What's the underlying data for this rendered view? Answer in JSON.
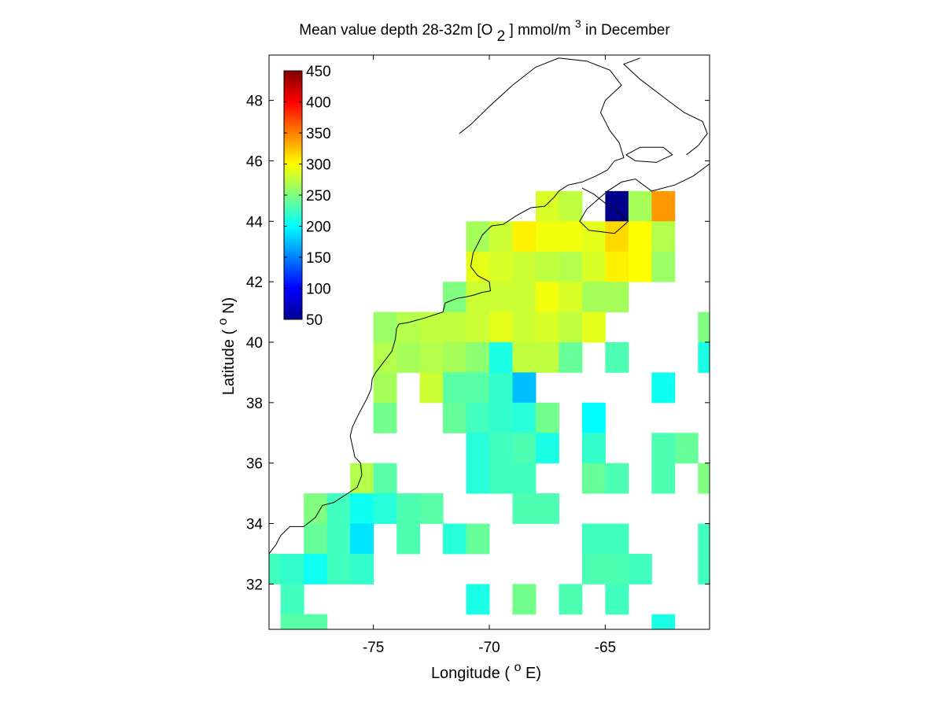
{
  "chart_data": {
    "type": "heatmap",
    "title": "Mean value depth 28-32m [O 2] mmol/m3 in December",
    "title_parts": {
      "prefix": "Mean value depth 28-32m [O",
      "sub": "2",
      "middle": "] mmol/m",
      "sup": "3",
      "suffix": " in December"
    },
    "xlabel": "Longitude ( oE)",
    "xlabel_parts": {
      "prefix": "Longitude ( ",
      "sup": "o",
      "suffix": "E)"
    },
    "ylabel": "Latitude ( oN)",
    "ylabel_parts": {
      "prefix": "Latitude ( ",
      "sup": "o",
      "suffix": "N)"
    },
    "xlim": [
      -79.5,
      -60.5
    ],
    "ylim": [
      30.5,
      49.5
    ],
    "xticks": [
      -75,
      -70,
      -65
    ],
    "xtick_labels": [
      "-75",
      "-70",
      "-65"
    ],
    "yticks": [
      32,
      34,
      36,
      38,
      40,
      42,
      44,
      46,
      48
    ],
    "ytick_labels": [
      "32",
      "34",
      "36",
      "38",
      "40",
      "42",
      "44",
      "46",
      "48"
    ],
    "cell_size_deg": 1,
    "colormap": "jet",
    "clim": [
      50,
      450
    ],
    "colorbar_ticks": [
      50,
      100,
      150,
      200,
      250,
      300,
      350,
      400,
      450
    ],
    "colorbar_tick_labels": [
      "50",
      "100",
      "150",
      "200",
      "250",
      "300",
      "350",
      "400",
      "450"
    ],
    "colorbar_location": "top-left",
    "grid": false,
    "cells": [
      [
        -67.5,
        44.5,
        285
      ],
      [
        -66.5,
        44.5,
        275
      ],
      [
        -64.5,
        44.5,
        55
      ],
      [
        -63.5,
        44.5,
        265
      ],
      [
        -62.5,
        44.5,
        340
      ],
      [
        -70.5,
        43.5,
        265
      ],
      [
        -69.5,
        43.5,
        280
      ],
      [
        -68.5,
        43.5,
        305
      ],
      [
        -67.5,
        43.5,
        295
      ],
      [
        -66.5,
        43.5,
        295
      ],
      [
        -65.5,
        43.5,
        290
      ],
      [
        -64.5,
        43.5,
        315
      ],
      [
        -63.5,
        43.5,
        300
      ],
      [
        -62.5,
        43.5,
        270
      ],
      [
        -70.5,
        42.5,
        290
      ],
      [
        -69.5,
        42.5,
        285
      ],
      [
        -68.5,
        42.5,
        280
      ],
      [
        -67.5,
        42.5,
        275
      ],
      [
        -66.5,
        42.5,
        270
      ],
      [
        -65.5,
        42.5,
        285
      ],
      [
        -64.5,
        42.5,
        305
      ],
      [
        -63.5,
        42.5,
        300
      ],
      [
        -62.5,
        42.5,
        260
      ],
      [
        -71.5,
        41.5,
        250
      ],
      [
        -70.5,
        41.5,
        280
      ],
      [
        -69.5,
        41.5,
        280
      ],
      [
        -68.5,
        41.5,
        280
      ],
      [
        -67.5,
        41.5,
        295
      ],
      [
        -66.5,
        41.5,
        285
      ],
      [
        -65.5,
        41.5,
        265
      ],
      [
        -64.5,
        41.5,
        265
      ],
      [
        -74.5,
        40.5,
        260
      ],
      [
        -73.5,
        40.5,
        270
      ],
      [
        -72.5,
        40.5,
        275
      ],
      [
        -71.5,
        40.5,
        275
      ],
      [
        -70.5,
        40.5,
        280
      ],
      [
        -69.5,
        40.5,
        290
      ],
      [
        -68.5,
        40.5,
        280
      ],
      [
        -67.5,
        40.5,
        285
      ],
      [
        -66.5,
        40.5,
        275
      ],
      [
        -65.5,
        40.5,
        290
      ],
      [
        -60.5,
        40.5,
        250
      ],
      [
        -74.5,
        39.5,
        270
      ],
      [
        -73.5,
        39.5,
        265
      ],
      [
        -72.5,
        39.5,
        270
      ],
      [
        -71.5,
        39.5,
        265
      ],
      [
        -70.5,
        39.5,
        255
      ],
      [
        -69.5,
        39.5,
        210
      ],
      [
        -68.5,
        39.5,
        275
      ],
      [
        -67.5,
        39.5,
        275
      ],
      [
        -66.5,
        39.5,
        240
      ],
      [
        -64.5,
        39.5,
        230
      ],
      [
        -60.5,
        39.5,
        210
      ],
      [
        -74.5,
        38.5,
        265
      ],
      [
        -72.5,
        38.5,
        280
      ],
      [
        -71.5,
        38.5,
        235
      ],
      [
        -70.5,
        38.5,
        235
      ],
      [
        -69.5,
        38.5,
        220
      ],
      [
        -68.5,
        38.5,
        175
      ],
      [
        -62.5,
        38.5,
        205
      ],
      [
        -74.5,
        37.5,
        245
      ],
      [
        -71.5,
        37.5,
        240
      ],
      [
        -70.5,
        37.5,
        225
      ],
      [
        -69.5,
        37.5,
        220
      ],
      [
        -68.5,
        37.5,
        215
      ],
      [
        -67.5,
        37.5,
        245
      ],
      [
        -65.5,
        37.5,
        200
      ],
      [
        -70.5,
        36.5,
        215
      ],
      [
        -69.5,
        36.5,
        225
      ],
      [
        -68.5,
        36.5,
        230
      ],
      [
        -67.5,
        36.5,
        210
      ],
      [
        -65.5,
        36.5,
        220
      ],
      [
        -62.5,
        36.5,
        230
      ],
      [
        -61.5,
        36.5,
        240
      ],
      [
        -75.5,
        35.5,
        270
      ],
      [
        -74.5,
        35.5,
        235
      ],
      [
        -70.5,
        35.5,
        215
      ],
      [
        -69.5,
        35.5,
        225
      ],
      [
        -68.5,
        35.5,
        225
      ],
      [
        -65.5,
        35.5,
        240
      ],
      [
        -64.5,
        35.5,
        230
      ],
      [
        -62.5,
        35.5,
        230
      ],
      [
        -60.5,
        35.5,
        250
      ],
      [
        -77.5,
        34.5,
        250
      ],
      [
        -76.5,
        34.5,
        225
      ],
      [
        -75.5,
        34.5,
        205
      ],
      [
        -74.5,
        34.5,
        215
      ],
      [
        -73.5,
        34.5,
        230
      ],
      [
        -72.5,
        34.5,
        235
      ],
      [
        -68.5,
        34.5,
        230
      ],
      [
        -67.5,
        34.5,
        230
      ],
      [
        -77.5,
        33.5,
        240
      ],
      [
        -76.5,
        33.5,
        225
      ],
      [
        -75.5,
        33.5,
        190
      ],
      [
        -73.5,
        33.5,
        230
      ],
      [
        -71.5,
        33.5,
        215
      ],
      [
        -70.5,
        33.5,
        240
      ],
      [
        -65.5,
        33.5,
        225
      ],
      [
        -64.5,
        33.5,
        225
      ],
      [
        -60.5,
        33.5,
        225
      ],
      [
        -79.5,
        32.5,
        225
      ],
      [
        -78.5,
        32.5,
        220
      ],
      [
        -77.5,
        32.5,
        205
      ],
      [
        -76.5,
        32.5,
        225
      ],
      [
        -75.5,
        32.5,
        220
      ],
      [
        -65.5,
        32.5,
        230
      ],
      [
        -64.5,
        32.5,
        230
      ],
      [
        -63.5,
        32.5,
        225
      ],
      [
        -60.5,
        32.5,
        225
      ],
      [
        -78.5,
        31.5,
        225
      ],
      [
        -70.5,
        31.5,
        210
      ],
      [
        -68.5,
        31.5,
        245
      ],
      [
        -66.5,
        31.5,
        230
      ],
      [
        -64.5,
        31.5,
        225
      ],
      [
        -78.5,
        30.5,
        235
      ],
      [
        -77.5,
        30.5,
        235
      ],
      [
        -62.5,
        30.5,
        210
      ]
    ],
    "coastline": [
      [
        -79.5,
        33.0
      ],
      [
        -79.2,
        33.3
      ],
      [
        -79.0,
        33.6
      ],
      [
        -78.6,
        33.9
      ],
      [
        -78.0,
        33.9
      ],
      [
        -77.5,
        34.2
      ],
      [
        -77.2,
        34.6
      ],
      [
        -76.7,
        34.7
      ],
      [
        -76.2,
        34.95
      ],
      [
        -75.7,
        35.2
      ],
      [
        -75.5,
        35.6
      ],
      [
        -75.55,
        36.0
      ],
      [
        -75.8,
        36.2
      ],
      [
        -76.0,
        36.9
      ],
      [
        -75.9,
        37.2
      ],
      [
        -75.65,
        37.6
      ],
      [
        -75.3,
        38.1
      ],
      [
        -75.1,
        38.45
      ],
      [
        -75.05,
        38.8
      ],
      [
        -74.9,
        39.0
      ],
      [
        -74.6,
        39.3
      ],
      [
        -74.2,
        39.7
      ],
      [
        -74.05,
        40.1
      ],
      [
        -74.0,
        40.45
      ],
      [
        -73.9,
        40.6
      ],
      [
        -73.5,
        40.65
      ],
      [
        -72.8,
        40.8
      ],
      [
        -72.0,
        41.0
      ],
      [
        -71.9,
        41.3
      ],
      [
        -71.4,
        41.45
      ],
      [
        -71.0,
        41.5
      ],
      [
        -70.7,
        41.55
      ],
      [
        -70.3,
        41.65
      ],
      [
        -69.95,
        41.7
      ],
      [
        -70.0,
        42.0
      ],
      [
        -70.5,
        42.2
      ],
      [
        -70.8,
        42.5
      ],
      [
        -70.7,
        42.95
      ],
      [
        -70.3,
        43.55
      ],
      [
        -69.9,
        43.85
      ],
      [
        -69.4,
        43.9
      ],
      [
        -68.8,
        44.2
      ],
      [
        -68.2,
        44.45
      ],
      [
        -67.6,
        44.5
      ],
      [
        -67.2,
        44.8
      ],
      [
        -67.0,
        45.0
      ],
      [
        -66.6,
        45.2
      ],
      [
        -66.0,
        45.3
      ],
      [
        -65.4,
        45.5
      ],
      [
        -64.9,
        45.7
      ],
      [
        -64.6,
        46.0
      ],
      [
        -64.2,
        46.1
      ],
      [
        -64.4,
        46.6
      ],
      [
        -64.8,
        47.0
      ],
      [
        -65.2,
        47.6
      ],
      [
        -65.0,
        48.0
      ],
      [
        -64.3,
        48.5
      ],
      [
        -64.8,
        49.0
      ],
      [
        -65.8,
        49.3
      ],
      [
        -67.0,
        49.4
      ],
      [
        -68.0,
        49.1
      ],
      [
        -69.0,
        48.5
      ],
      [
        -70.0,
        47.8
      ],
      [
        -70.8,
        47.2
      ],
      [
        -71.3,
        46.9
      ]
    ],
    "coastline_inner": [
      [
        -66.0,
        45.1
      ],
      [
        -65.5,
        44.9
      ],
      [
        -65.0,
        44.6
      ],
      [
        -64.6,
        44.4
      ],
      [
        -64.3,
        44.2
      ],
      [
        -64.0,
        44.0
      ],
      [
        -64.6,
        43.6
      ],
      [
        -65.7,
        43.7
      ],
      [
        -66.1,
        44.0
      ],
      [
        -65.8,
        44.4
      ],
      [
        -64.9,
        45.0
      ],
      [
        -64.3,
        45.3
      ],
      [
        -63.7,
        45.4
      ],
      [
        -63.0,
        45.0
      ],
      [
        -62.0,
        45.2
      ],
      [
        -61.2,
        45.5
      ],
      [
        -60.5,
        45.9
      ]
    ],
    "coastline_island": [
      [
        -64.1,
        46.2
      ],
      [
        -63.5,
        46.45
      ],
      [
        -62.5,
        46.45
      ],
      [
        -62.1,
        46.2
      ],
      [
        -62.8,
        45.95
      ],
      [
        -63.7,
        46.0
      ],
      [
        -64.1,
        46.2
      ]
    ],
    "coastline_north": [
      [
        -61.5,
        46.2
      ],
      [
        -61.0,
        46.5
      ],
      [
        -60.6,
        46.9
      ],
      [
        -60.8,
        47.3
      ],
      [
        -61.6,
        47.6
      ],
      [
        -62.3,
        48.0
      ],
      [
        -63.5,
        48.7
      ],
      [
        -64.2,
        49.2
      ],
      [
        -63.5,
        49.4
      ]
    ]
  }
}
